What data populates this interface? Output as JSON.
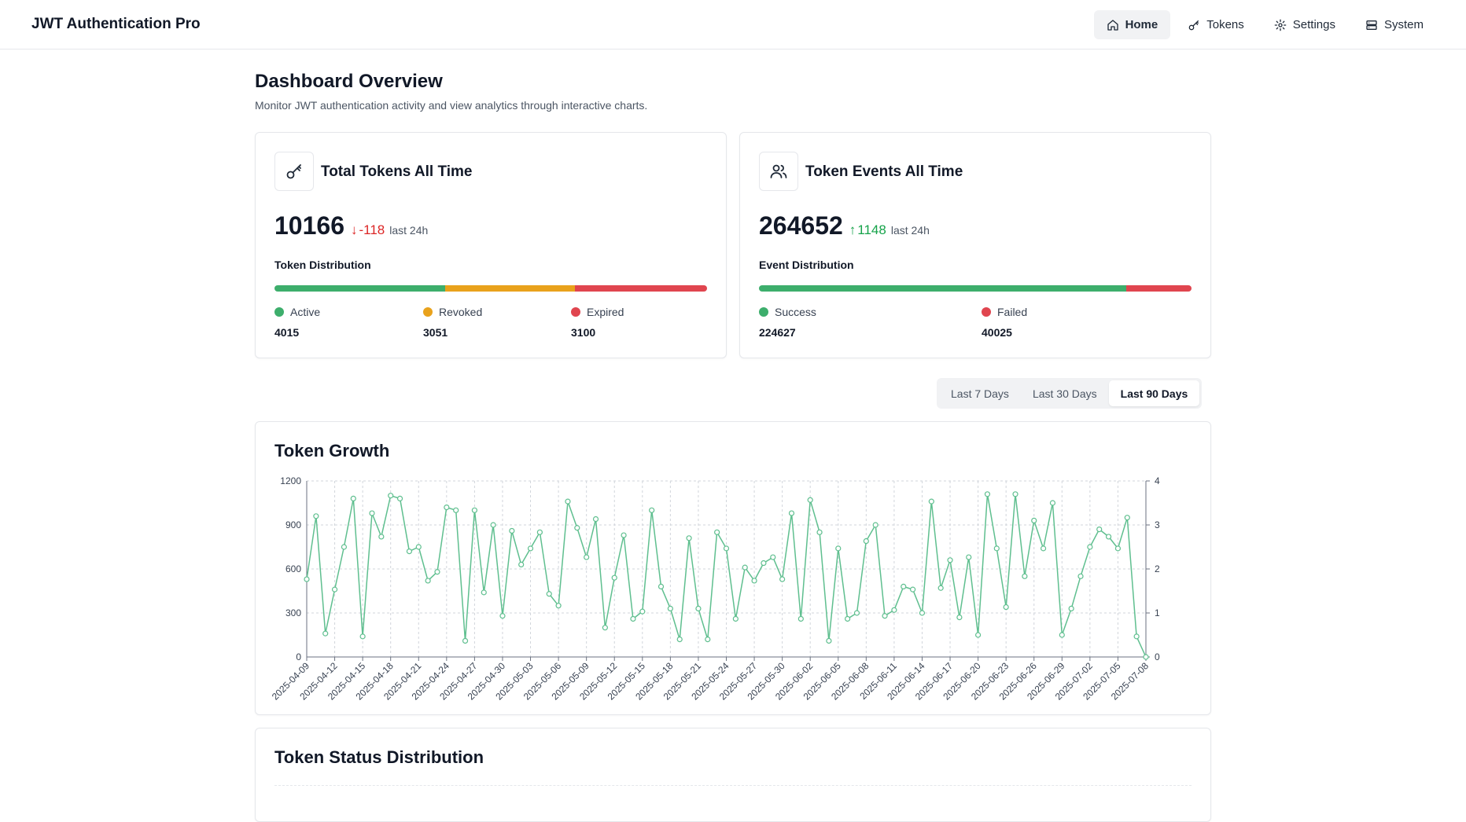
{
  "app": {
    "brand": "JWT Authentication Pro",
    "nav": [
      {
        "label": "Home",
        "icon": "home-icon",
        "active": true
      },
      {
        "label": "Tokens",
        "icon": "key-icon",
        "active": false
      },
      {
        "label": "Settings",
        "icon": "gear-icon",
        "active": false
      },
      {
        "label": "System",
        "icon": "server-icon",
        "active": false
      }
    ]
  },
  "page": {
    "title": "Dashboard Overview",
    "subtitle": "Monitor JWT authentication activity and view analytics through interactive charts."
  },
  "tokens_card": {
    "icon": "key-icon",
    "title": "Total Tokens All Time",
    "value": "10166",
    "delta": "-118",
    "delta_direction": "down",
    "delta_note": "last 24h",
    "distribution_label": "Token Distribution",
    "segments": [
      {
        "label": "Active",
        "value": "4015",
        "color": "#3dae6c"
      },
      {
        "label": "Revoked",
        "value": "3051",
        "color": "#e9a21c"
      },
      {
        "label": "Expired",
        "value": "3100",
        "color": "#e0454f"
      }
    ]
  },
  "events_card": {
    "icon": "users-icon",
    "title": "Token Events All Time",
    "value": "264652",
    "delta": "1148",
    "delta_direction": "up",
    "delta_note": "last 24h",
    "distribution_label": "Event Distribution",
    "segments": [
      {
        "label": "Success",
        "value": "224627",
        "color": "#3dae6c"
      },
      {
        "label": "Failed",
        "value": "40025",
        "color": "#e0454f"
      }
    ]
  },
  "range_selector": {
    "options": [
      "Last 7 Days",
      "Last 30 Days",
      "Last 90 Days"
    ],
    "selected": "Last 90 Days"
  },
  "growth_card": {
    "title": "Token Growth"
  },
  "status_card": {
    "title": "Token Status Distribution"
  },
  "chart_data": {
    "type": "line",
    "title": "Token Growth",
    "line_color": "#5fbf8f",
    "x_tick_labels": [
      "2025-04-09",
      "2025-04-12",
      "2025-04-15",
      "2025-04-18",
      "2025-04-21",
      "2025-04-24",
      "2025-04-27",
      "2025-04-30",
      "2025-05-03",
      "2025-05-06",
      "2025-05-09",
      "2025-05-12",
      "2025-05-15",
      "2025-05-18",
      "2025-05-21",
      "2025-05-24",
      "2025-05-27",
      "2025-05-30",
      "2025-06-02",
      "2025-06-05",
      "2025-06-08",
      "2025-06-11",
      "2025-06-14",
      "2025-06-17",
      "2025-06-20",
      "2025-06-23",
      "2025-06-26",
      "2025-06-29",
      "2025-07-02",
      "2025-07-05",
      "2025-07-08"
    ],
    "y_left": {
      "min": 0,
      "max": 1200,
      "ticks": [
        0,
        300,
        600,
        900,
        1200
      ]
    },
    "y_right": {
      "min": 0,
      "max": 4,
      "ticks": [
        0,
        1,
        2,
        3,
        4
      ]
    },
    "grid": true,
    "values": [
      530,
      960,
      160,
      460,
      750,
      1080,
      140,
      980,
      820,
      1100,
      1080,
      720,
      750,
      520,
      580,
      1020,
      1000,
      110,
      1000,
      440,
      900,
      280,
      860,
      630,
      740,
      850,
      430,
      350,
      1060,
      880,
      680,
      940,
      200,
      540,
      830,
      260,
      310,
      1000,
      480,
      330,
      120,
      810,
      330,
      120,
      850,
      740,
      260,
      610,
      520,
      640,
      680,
      530,
      980,
      260,
      1070,
      850,
      110,
      740,
      260,
      300,
      790,
      900,
      280,
      320,
      480,
      460,
      300,
      1060,
      470,
      660,
      270,
      680,
      150,
      1110,
      740,
      340,
      1110,
      550,
      930,
      740,
      1050,
      150,
      330,
      550,
      750,
      870,
      820,
      740,
      950,
      140,
      0
    ]
  }
}
